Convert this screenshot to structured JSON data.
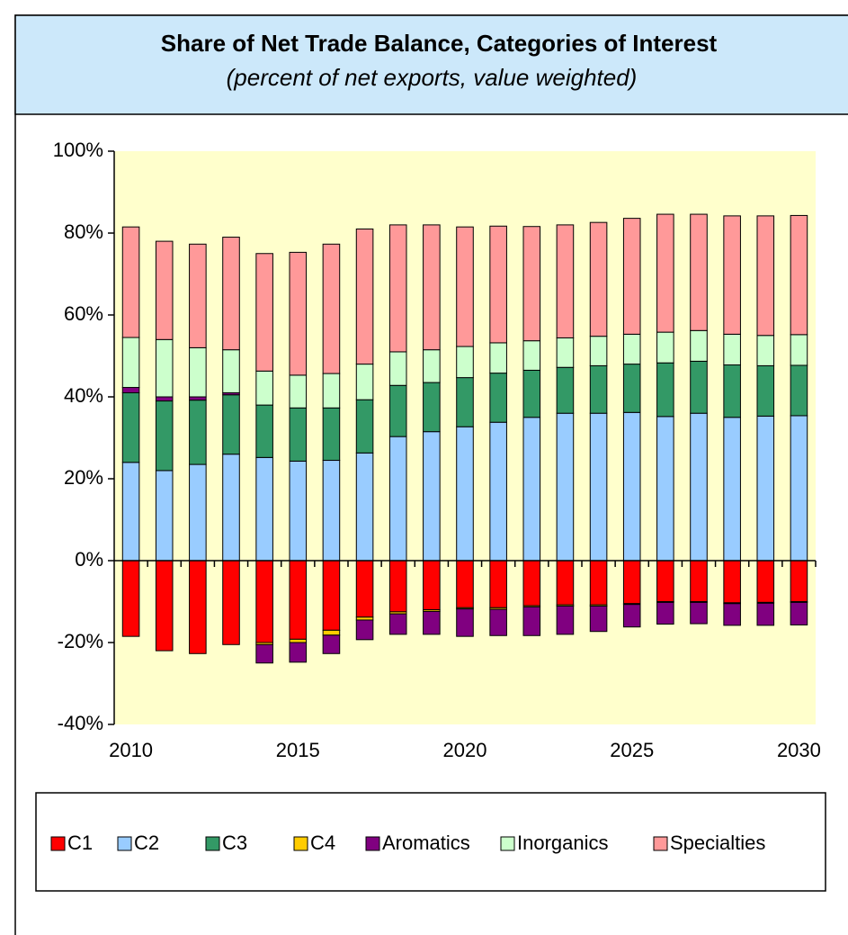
{
  "chart_data": {
    "type": "stacked_bar",
    "title": "Share of Net Trade Balance, Categories of Interest",
    "subtitle": "(percent of net exports, value weighted)",
    "categories": [
      "2010",
      null,
      null,
      null,
      null,
      "2015",
      null,
      null,
      null,
      null,
      "2020",
      null,
      null,
      null,
      null,
      "2025",
      null,
      null,
      null,
      null,
      "2030"
    ],
    "series": [
      {
        "name": "C1",
        "color": "#ff0000",
        "values": [
          -18.5,
          -22,
          -22.7,
          -20.5,
          -20,
          -19.2,
          -17,
          -13.8,
          -12.5,
          -12,
          -11.5,
          -11.5,
          -11,
          -10.8,
          -10.8,
          -10.5,
          -10,
          -10,
          -10.3,
          -10.2,
          -10
        ]
      },
      {
        "name": "C2",
        "color": "#99ccff",
        "values": [
          24,
          22,
          23.5,
          26,
          25.2,
          24.3,
          24.5,
          26.3,
          30.3,
          31.5,
          32.7,
          33.8,
          35,
          36,
          36,
          36.2,
          35.2,
          36,
          35,
          35.3,
          35.4
        ]
      },
      {
        "name": "C3",
        "color": "#339966",
        "values": [
          17,
          17,
          15.7,
          14.5,
          12.8,
          13,
          12.8,
          13,
          12.5,
          12,
          12,
          12,
          11.5,
          11.2,
          11.6,
          11.8,
          13.1,
          12.7,
          12.8,
          12.3,
          12.3
        ]
      },
      {
        "name": "C4",
        "color": "#ffcc00",
        "values": [
          0,
          0,
          0,
          0,
          -0.5,
          -0.8,
          -1.2,
          -0.7,
          -0.5,
          -0.4,
          -0.3,
          -0.4,
          -0.3,
          -0.3,
          -0.3,
          -0.2,
          -0.2,
          -0.2,
          -0.2,
          -0.2,
          -0.2
        ]
      },
      {
        "name": "Aromatics",
        "color": "#800080",
        "values": [
          1.3,
          1,
          0.8,
          0.5,
          -4.5,
          -4.8,
          -4.5,
          -4.8,
          -5,
          -5.6,
          -6.7,
          -6.4,
          -7,
          -6.9,
          -6.2,
          -5.5,
          -5.3,
          -5.2,
          -5.3,
          -5.4,
          -5.5
        ]
      },
      {
        "name": "Inorganics",
        "color": "#ccffcc",
        "values": [
          12.2,
          14,
          12,
          10.5,
          8.3,
          8,
          8.4,
          8.7,
          8.2,
          8,
          7.6,
          7.4,
          7.2,
          7.2,
          7.2,
          7.3,
          7.5,
          7.5,
          7.5,
          7.4,
          7.5
        ]
      },
      {
        "name": "Specialties",
        "color": "#ff9999",
        "values": [
          27,
          24,
          25.3,
          27.5,
          28.7,
          30,
          31.6,
          33,
          31,
          30.5,
          29.2,
          28.5,
          27.9,
          27.6,
          27.8,
          28.3,
          28.8,
          28.4,
          28.9,
          29.2,
          29.1
        ]
      }
    ],
    "ylim": [
      -40,
      100
    ],
    "yticks": [
      {
        "value": -40,
        "label": "-40%"
      },
      {
        "value": -20,
        "label": "-20%"
      },
      {
        "value": 0,
        "label": "0%"
      },
      {
        "value": 20,
        "label": "20%"
      },
      {
        "value": 40,
        "label": "40%"
      },
      {
        "value": 60,
        "label": "60%"
      },
      {
        "value": 80,
        "label": "80%"
      },
      {
        "value": 100,
        "label": "100%"
      }
    ],
    "plot_background": "#ffffcc",
    "legend": "bottom"
  }
}
